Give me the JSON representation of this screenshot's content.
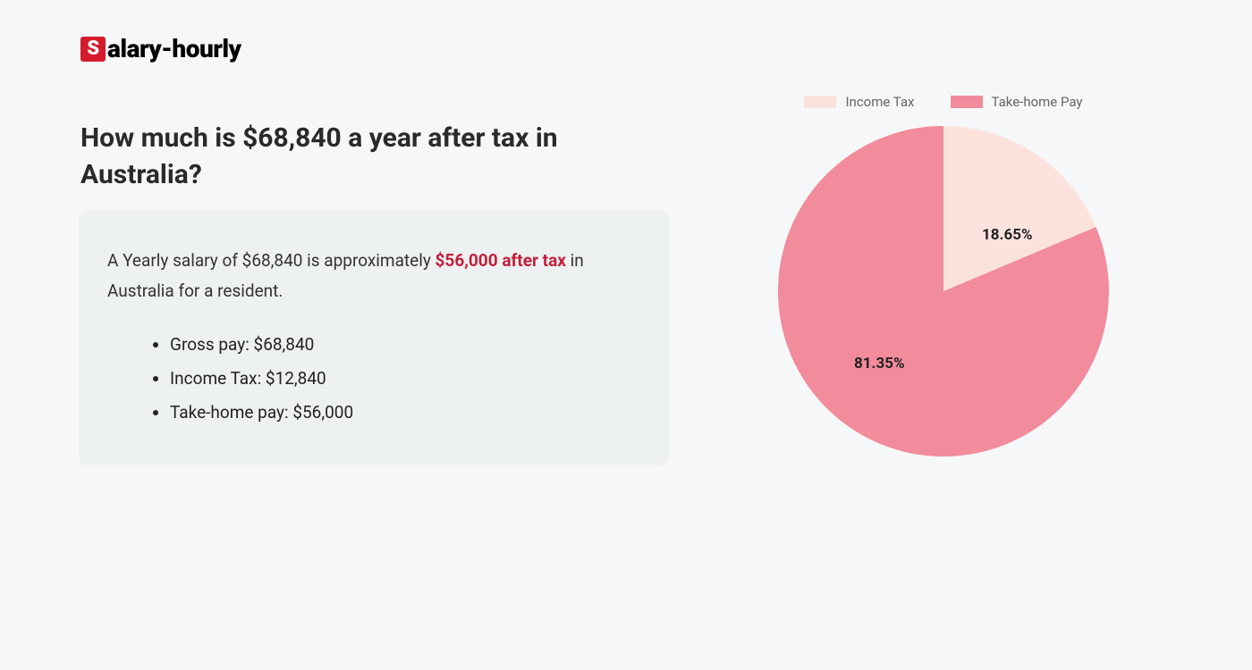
{
  "logo": {
    "letter": "S",
    "rest": "alary-hourly",
    "accent_color": "#d41c2c"
  },
  "heading": "How much is $68,840 a year after tax in Australia?",
  "summary": {
    "prefix": "A Yearly salary of $68,840 is approximately ",
    "highlight": "$56,000 after tax",
    "suffix": " in Australia for a resident.",
    "highlight_color": "#c41e3a",
    "box_background": "#edf1f1",
    "items": [
      "Gross pay: $68,840",
      "Income Tax: $12,840",
      "Take-home pay: $56,000"
    ]
  },
  "chart": {
    "type": "pie",
    "background_color": "#f6f7f8",
    "radius": 185,
    "slices": [
      {
        "label": "Income Tax",
        "value": 18.65,
        "display": "18.65%",
        "color": "#fbe2dd"
      },
      {
        "label": "Take-home Pay",
        "value": 81.35,
        "display": "81.35%",
        "color": "#f28b9b"
      }
    ],
    "legend_text_color": "#666666",
    "label_fontsize": 17,
    "label_fontweight": 700,
    "label_color": "#222222"
  }
}
